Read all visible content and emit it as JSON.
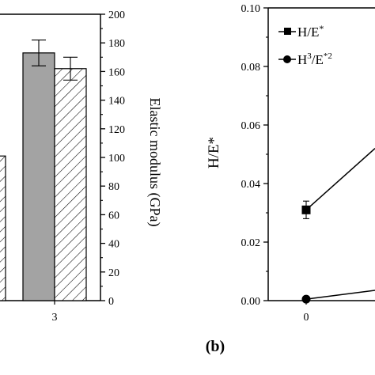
{
  "colors": {
    "axis": "#000000",
    "bar_solid": "#a3a3a3",
    "bar_hatch": "#000000",
    "line": "#000000"
  },
  "panel_b_label": "(b)",
  "chart_data": [
    {
      "type": "bar",
      "panel": "a (cropped)",
      "categories": [
        "3"
      ],
      "ylabel": "Elastic modulus (GPa)",
      "ylim": [
        0,
        200
      ],
      "yticks": [
        "0",
        "20",
        "40",
        "60",
        "80",
        "100",
        "120",
        "140",
        "160",
        "180",
        "200"
      ],
      "series": [
        {
          "style": "solid-gray",
          "values": [
            173
          ],
          "errors": [
            9
          ]
        },
        {
          "style": "hatched",
          "values": [
            162
          ],
          "errors": [
            8
          ]
        }
      ],
      "partial_bar": {
        "style": "hatched",
        "value": 101
      },
      "grid": false
    },
    {
      "type": "line",
      "panel": "b",
      "ylabel": "H/E*",
      "ylim": [
        0,
        0.1
      ],
      "yticks": [
        "0.00",
        "0.02",
        "0.04",
        "0.06",
        "0.08",
        "0.10"
      ],
      "xticks": [
        "0"
      ],
      "legend_position": "top-left",
      "series": [
        {
          "name": "H/E*",
          "marker": "square",
          "points": [
            {
              "x": 0,
              "y": 0.031,
              "err": 0.003
            }
          ],
          "continues_to": {
            "y": 0.052
          }
        },
        {
          "name": "H³/E*²",
          "marker": "circle",
          "points": [
            {
              "x": 0,
              "y": 0.0005,
              "err": 0
            }
          ],
          "continues_to": {
            "y": 0.0035
          }
        }
      ],
      "legend": [
        {
          "label_main": "H/E",
          "label_sup": "*"
        },
        {
          "label_main": "H",
          "label_sup1": "3",
          "label_mid": "/E",
          "label_sup2": "*2"
        }
      ],
      "grid": false
    }
  ]
}
